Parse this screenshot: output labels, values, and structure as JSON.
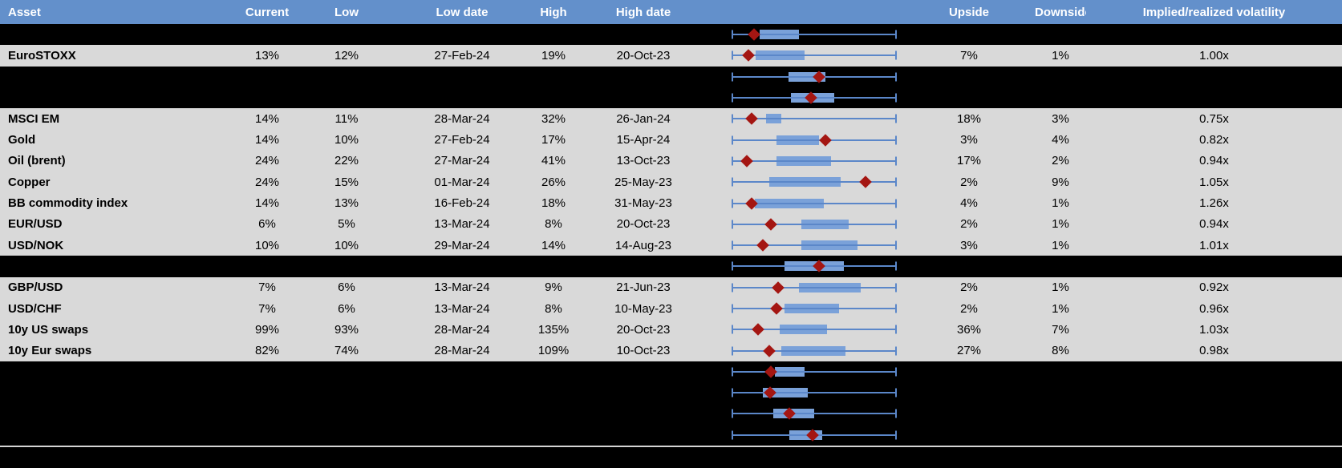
{
  "colors": {
    "header_bg": "#6390cb",
    "row_bg": "#d9d9d9",
    "spacer_bg": "#000000",
    "header_text": "#ffffff",
    "text": "#000000",
    "box_fill": "#7aa1d9",
    "whisker": "#5b87c9",
    "marker": "#a41612",
    "divider": "#d4d4d4"
  },
  "header": {
    "asset": "Asset",
    "current": "Current",
    "low": "Low",
    "low_date": "Low date",
    "high": "High",
    "high_date": "High date",
    "chart": "",
    "upside": "Upside",
    "downside": "Downside",
    "implied": "Implied/realized volatility"
  },
  "rows": [
    {
      "type": "spacer",
      "plot": {
        "box_start": 0.17,
        "box_end": 0.41,
        "marker": 0.135
      }
    },
    {
      "type": "data",
      "asset": "EuroSTOXX",
      "current": "13%",
      "low": "12%",
      "low_date": "27-Feb-24",
      "high": "19%",
      "high_date": "20-Oct-23",
      "upside": "7%",
      "downside": "1%",
      "implied": "1.00x",
      "plot": {
        "box_start": 0.145,
        "box_end": 0.44,
        "marker": 0.1
      }
    },
    {
      "type": "spacer",
      "plot": {
        "box_start": 0.345,
        "box_end": 0.57,
        "marker": 0.53
      }
    },
    {
      "type": "spacer",
      "plot": {
        "box_start": 0.36,
        "box_end": 0.62,
        "marker": 0.48
      }
    },
    {
      "type": "data",
      "asset": "MSCI EM",
      "current": "14%",
      "low": "11%",
      "low_date": "28-Mar-24",
      "high": "32%",
      "high_date": "26-Jan-24",
      "upside": "18%",
      "downside": "3%",
      "implied": "0.75x",
      "plot": {
        "box_start": 0.21,
        "box_end": 0.3,
        "marker": 0.12
      }
    },
    {
      "type": "data",
      "asset": "Gold",
      "current": "14%",
      "low": "10%",
      "low_date": "27-Feb-24",
      "high": "17%",
      "high_date": "15-Apr-24",
      "upside": "3%",
      "downside": "4%",
      "implied": "0.82x",
      "plot": {
        "box_start": 0.27,
        "box_end": 0.53,
        "marker": 0.57
      }
    },
    {
      "type": "data",
      "asset": "Oil (brent)",
      "current": "24%",
      "low": "22%",
      "low_date": "27-Mar-24",
      "high": "41%",
      "high_date": "13-Oct-23",
      "upside": "17%",
      "downside": "2%",
      "implied": "0.94x",
      "plot": {
        "box_start": 0.27,
        "box_end": 0.6,
        "marker": 0.09
      }
    },
    {
      "type": "data",
      "asset": "Copper",
      "current": "24%",
      "low": "15%",
      "low_date": "01-Mar-24",
      "high": "26%",
      "high_date": "25-May-23",
      "upside": "2%",
      "downside": "9%",
      "implied": "1.05x",
      "plot": {
        "box_start": 0.23,
        "box_end": 0.66,
        "marker": 0.81
      }
    },
    {
      "type": "data",
      "asset": "BB commodity index",
      "current": "14%",
      "low": "13%",
      "low_date": "16-Feb-24",
      "high": "18%",
      "high_date": "31-May-23",
      "upside": "4%",
      "downside": "1%",
      "implied": "1.26x",
      "plot": {
        "box_start": 0.14,
        "box_end": 0.56,
        "marker": 0.12
      }
    },
    {
      "type": "data",
      "asset": "EUR/USD",
      "current": "6%",
      "low": "5%",
      "low_date": "13-Mar-24",
      "high": "8%",
      "high_date": "20-Oct-23",
      "upside": "2%",
      "downside": "1%",
      "implied": "0.94x",
      "plot": {
        "box_start": 0.42,
        "box_end": 0.71,
        "marker": 0.24
      }
    },
    {
      "type": "data",
      "asset": "USD/NOK",
      "current": "10%",
      "low": "10%",
      "low_date": "29-Mar-24",
      "high": "14%",
      "high_date": "14-Aug-23",
      "upside": "3%",
      "downside": "1%",
      "implied": "1.01x",
      "plot": {
        "box_start": 0.42,
        "box_end": 0.76,
        "marker": 0.19
      }
    },
    {
      "type": "spacer",
      "plot": {
        "box_start": 0.32,
        "box_end": 0.68,
        "marker": 0.53
      }
    },
    {
      "type": "data",
      "asset": "GBP/USD",
      "current": "7%",
      "low": "6%",
      "low_date": "13-Mar-24",
      "high": "9%",
      "high_date": "21-Jun-23",
      "upside": "2%",
      "downside": "1%",
      "implied": "0.92x",
      "plot": {
        "box_start": 0.41,
        "box_end": 0.78,
        "marker": 0.28
      }
    },
    {
      "type": "data",
      "asset": "USD/CHF",
      "current": "7%",
      "low": "6%",
      "low_date": "13-Mar-24",
      "high": "8%",
      "high_date": "10-May-23",
      "upside": "2%",
      "downside": "1%",
      "implied": "0.96x",
      "plot": {
        "box_start": 0.32,
        "box_end": 0.65,
        "marker": 0.27
      }
    },
    {
      "type": "data",
      "asset": "10y US swaps",
      "current": "99%",
      "low": "93%",
      "low_date": "28-Mar-24",
      "high": "135%",
      "high_date": "20-Oct-23",
      "upside": "36%",
      "downside": "7%",
      "implied": "1.03x",
      "plot": {
        "box_start": 0.29,
        "box_end": 0.58,
        "marker": 0.16
      }
    },
    {
      "type": "data",
      "asset": "10y Eur swaps",
      "current": "82%",
      "low": "74%",
      "low_date": "28-Mar-24",
      "high": "109%",
      "high_date": "10-Oct-23",
      "upside": "27%",
      "downside": "8%",
      "implied": "0.98x",
      "plot": {
        "box_start": 0.3,
        "box_end": 0.69,
        "marker": 0.23
      }
    },
    {
      "type": "spacer",
      "plot": {
        "box_start": 0.26,
        "box_end": 0.44,
        "marker": 0.24
      }
    },
    {
      "type": "spacer",
      "plot": {
        "box_start": 0.19,
        "box_end": 0.46,
        "marker": 0.235
      }
    },
    {
      "type": "spacer",
      "plot": {
        "box_start": 0.25,
        "box_end": 0.5,
        "marker": 0.35
      }
    },
    {
      "type": "spacer",
      "plot": {
        "box_start": 0.35,
        "box_end": 0.55,
        "marker": 0.49
      }
    }
  ]
}
